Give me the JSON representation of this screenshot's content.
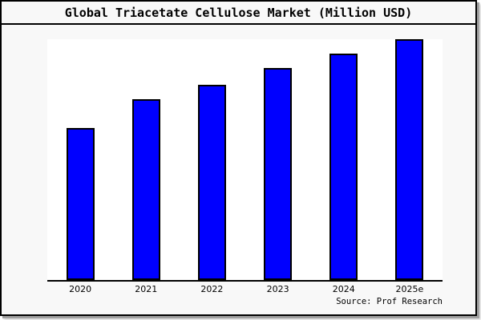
{
  "chart": {
    "title": "Global Triacetate Cellulose Market (Million USD)",
    "source_label": "Source: Prof Research",
    "colors": {
      "bar_fill": "#0000ff",
      "bar_border": "#000000",
      "figure_background": "#f8f8f8",
      "plot_background": "#ffffff",
      "frame_border": "#000000",
      "text": "#000000"
    }
  },
  "chart_data": {
    "type": "bar",
    "title": "Global Triacetate Cellulose Market (Million USD)",
    "unit": "Million USD",
    "categories": [
      "2020",
      "2021",
      "2022",
      "2023",
      "2024",
      "2025e"
    ],
    "values_pct_of_max": [
      63,
      75,
      81,
      88,
      94,
      100
    ],
    "value_axis_labeled": false,
    "xlabel": "",
    "ylabel": "",
    "grid": false,
    "legend": "none",
    "source": "Prof Research"
  }
}
